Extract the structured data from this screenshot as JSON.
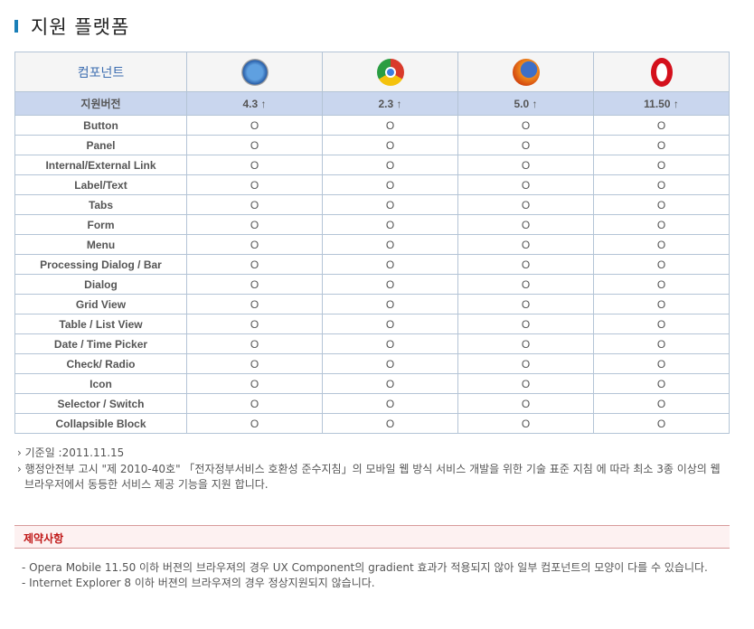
{
  "page_title": "지원 플랫폼",
  "table": {
    "component_header": "컴포넌트",
    "browsers": [
      {
        "icon": "safari-icon"
      },
      {
        "icon": "chrome-icon"
      },
      {
        "icon": "firefox-icon"
      },
      {
        "icon": "opera-icon"
      }
    ],
    "version_label": "지원버전",
    "versions": [
      "4.3 ↑",
      "2.3 ↑",
      "5.0 ↑",
      "11.50 ↑"
    ],
    "rows": [
      {
        "name": "Button",
        "values": [
          "O",
          "O",
          "O",
          "O"
        ]
      },
      {
        "name": "Panel",
        "values": [
          "O",
          "O",
          "O",
          "O"
        ]
      },
      {
        "name": "Internal/External Link",
        "values": [
          "O",
          "O",
          "O",
          "O"
        ]
      },
      {
        "name": "Label/Text",
        "values": [
          "O",
          "O",
          "O",
          "O"
        ]
      },
      {
        "name": "Tabs",
        "values": [
          "O",
          "O",
          "O",
          "O"
        ]
      },
      {
        "name": "Form",
        "values": [
          "O",
          "O",
          "O",
          "O"
        ]
      },
      {
        "name": "Menu",
        "values": [
          "O",
          "O",
          "O",
          "O"
        ]
      },
      {
        "name": "Processing Dialog / Bar",
        "values": [
          "O",
          "O",
          "O",
          "O"
        ]
      },
      {
        "name": "Dialog",
        "values": [
          "O",
          "O",
          "O",
          "O"
        ]
      },
      {
        "name": "Grid View",
        "values": [
          "O",
          "O",
          "O",
          "O"
        ]
      },
      {
        "name": "Table / List View",
        "values": [
          "O",
          "O",
          "O",
          "O"
        ]
      },
      {
        "name": "Date / Time Picker",
        "values": [
          "O",
          "O",
          "O",
          "O"
        ]
      },
      {
        "name": "Check/ Radio",
        "values": [
          "O",
          "O",
          "O",
          "O"
        ]
      },
      {
        "name": "Icon",
        "values": [
          "O",
          "O",
          "O",
          "O"
        ]
      },
      {
        "name": "Selector / Switch",
        "values": [
          "O",
          "O",
          "O",
          "O"
        ]
      },
      {
        "name": "Collapsible Block",
        "values": [
          "O",
          "O",
          "O",
          "O"
        ]
      }
    ]
  },
  "notes": [
    "› 기준일 :2011.11.15",
    "› 행정안전부 고시 \"제 2010-40호\" 「전자정부서비스 호환성 준수지침」의 모바일 웹 방식 서비스 개발을 위한 기술 표준 지침 에 따라 최소 3종 이상의 웹 브라우저에서 동등한 서비스 제공 기능을 지원 합니다."
  ],
  "restrictions": {
    "title": "제약사항",
    "items": [
      "- Opera Mobile 11.50 이하 버젼의 브라우져의 경우 UX Component의 gradient 효과가 적용되지 않아 일부 컴포넌트의 모양이 다를 수 있습니다.",
      "- Internet Explorer 8 이하 버젼의 브라우져의 경우 정상지원되지 않습니다."
    ]
  }
}
